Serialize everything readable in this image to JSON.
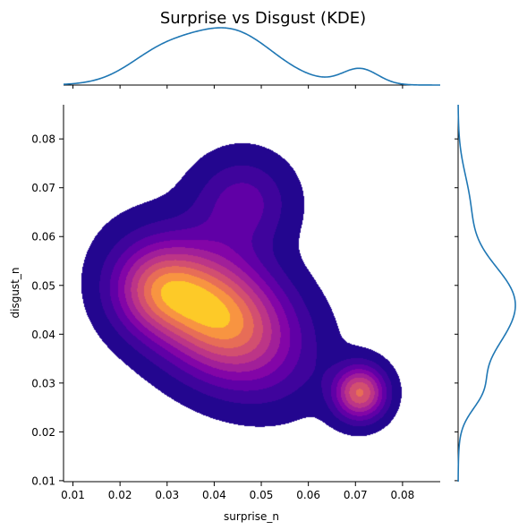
{
  "chart_data": {
    "type": "kde-joint",
    "title": "Surprise vs Disgust (KDE)",
    "xlabel": "surprise_n",
    "ylabel": "disgust_n",
    "xlim": [
      0.008,
      0.088
    ],
    "ylim": [
      0.0098,
      0.087
    ],
    "xticks": [
      {
        "value": 0.01,
        "label": "0.01"
      },
      {
        "value": 0.02,
        "label": "0.02"
      },
      {
        "value": 0.03,
        "label": "0.03"
      },
      {
        "value": 0.04,
        "label": "0.04"
      },
      {
        "value": 0.05,
        "label": "0.05"
      },
      {
        "value": 0.06,
        "label": "0.06"
      },
      {
        "value": 0.07,
        "label": "0.07"
      },
      {
        "value": 0.08,
        "label": "0.08"
      }
    ],
    "yticks": [
      {
        "value": 0.01,
        "label": "0.01"
      },
      {
        "value": 0.02,
        "label": "0.02"
      },
      {
        "value": 0.03,
        "label": "0.03"
      },
      {
        "value": 0.04,
        "label": "0.04"
      },
      {
        "value": 0.05,
        "label": "0.05"
      },
      {
        "value": 0.06,
        "label": "0.06"
      },
      {
        "value": 0.07,
        "label": "0.07"
      },
      {
        "value": 0.08,
        "label": "0.08"
      }
    ],
    "colormap": [
      "#23068f",
      "#3f049c",
      "#6000a6",
      "#8305a7",
      "#a11f99",
      "#bc3587",
      "#d24f70",
      "#e76d57",
      "#f89441",
      "#fdca28"
    ],
    "marginal_color": "#1f77b4",
    "components": [
      {
        "mx": 0.0405,
        "my": 0.044,
        "sx": 0.011,
        "sy": 0.0095,
        "rho": -0.35,
        "w": 0.7
      },
      {
        "mx": 0.0275,
        "my": 0.049,
        "sx": 0.0065,
        "sy": 0.006,
        "rho": 0.0,
        "w": 0.12
      },
      {
        "mx": 0.046,
        "my": 0.067,
        "sx": 0.007,
        "sy": 0.0065,
        "rho": 0.0,
        "w": 0.1
      },
      {
        "mx": 0.071,
        "my": 0.028,
        "sx": 0.0038,
        "sy": 0.0038,
        "rho": 0.0,
        "w": 0.08
      }
    ]
  }
}
